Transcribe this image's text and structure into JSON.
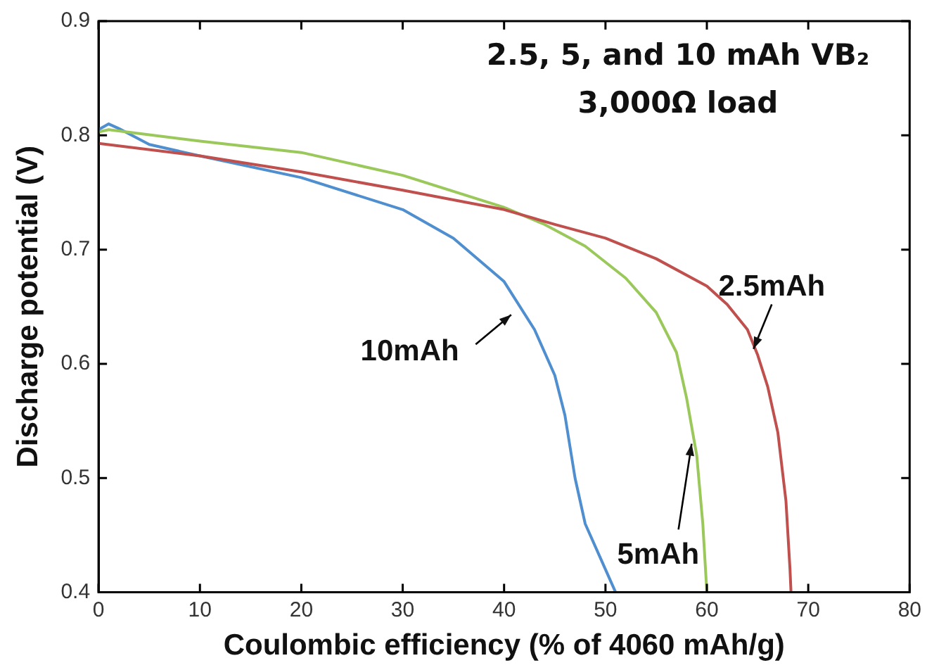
{
  "chart_data": {
    "type": "line",
    "title": "2.5, 5, and 10 mAh VB₂",
    "subtitle": "3,000Ω load",
    "xlabel": "Coulombic efficiency (% of 4060 mAh/g)",
    "ylabel": "Discharge potential (V)",
    "xlim": [
      0,
      80
    ],
    "xticks": [
      0,
      10,
      20,
      30,
      40,
      50,
      60,
      70,
      80
    ],
    "ylim": [
      0.4,
      0.9
    ],
    "yticks": [
      0.4,
      0.5,
      0.6,
      0.7,
      0.8,
      0.9
    ],
    "grid": false,
    "legend": false,
    "marker": "none",
    "line_style": "solid",
    "series": [
      {
        "name": "2.5mAh",
        "color": "#c0504d",
        "x": [
          0,
          10,
          20,
          30,
          40,
          45,
          50,
          55,
          60,
          62,
          64,
          65,
          66,
          67,
          67.8,
          68.2,
          68.3
        ],
        "values": [
          0.793,
          0.782,
          0.768,
          0.752,
          0.735,
          0.722,
          0.71,
          0.692,
          0.668,
          0.652,
          0.63,
          0.608,
          0.58,
          0.54,
          0.48,
          0.42,
          0.4
        ]
      },
      {
        "name": "5mAh",
        "color": "#9bc85a",
        "x": [
          0,
          1,
          10,
          20,
          30,
          40,
          44,
          48,
          52,
          55,
          57,
          58,
          59,
          59.6,
          60
        ],
        "values": [
          0.803,
          0.805,
          0.795,
          0.785,
          0.765,
          0.737,
          0.722,
          0.703,
          0.675,
          0.645,
          0.61,
          0.57,
          0.52,
          0.46,
          0.4
        ]
      },
      {
        "name": "10mAh",
        "color": "#4f8fcf",
        "x": [
          0,
          1,
          2,
          5,
          10,
          20,
          30,
          35,
          40,
          43,
          45,
          46,
          47,
          48,
          50,
          51
        ],
        "values": [
          0.805,
          0.81,
          0.806,
          0.792,
          0.782,
          0.763,
          0.735,
          0.71,
          0.672,
          0.63,
          0.59,
          0.555,
          0.5,
          0.46,
          0.42,
          0.4
        ]
      }
    ]
  }
}
